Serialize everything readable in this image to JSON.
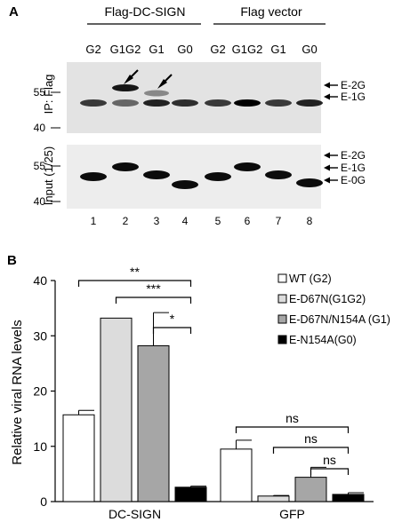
{
  "panel_a": {
    "label": "A",
    "group1_title": "Flag-DC-SIGN",
    "group2_title": "Flag vector",
    "lane_headers": [
      "G2",
      "G1G2",
      "G1",
      "G0",
      "G2",
      "G1G2",
      "G1",
      "G0"
    ],
    "top_blot": {
      "ylabel": "IP: Flag",
      "markers": [
        "55",
        "40"
      ],
      "right_labels": [
        "E-2G",
        "E-1G"
      ]
    },
    "bottom_blot": {
      "ylabel": "Input (1/25)",
      "markers": [
        "55",
        "40"
      ],
      "right_labels": [
        "E-2G",
        "E-1G",
        "E-0G"
      ]
    },
    "lane_numbers": [
      "1",
      "2",
      "3",
      "4",
      "5",
      "6",
      "7",
      "8"
    ]
  },
  "panel_b": {
    "label": "B",
    "significance": [
      "**",
      "***",
      "*",
      "ns",
      "ns",
      "ns"
    ]
  },
  "chart_data": {
    "type": "bar",
    "categories": [
      "DC-SIGN",
      "GFP"
    ],
    "ylabel": "Relative viral RNA levels",
    "ylim": [
      0,
      40
    ],
    "yticks": [
      0,
      10,
      20,
      30,
      40
    ],
    "legend_position": "top-right",
    "series": [
      {
        "name": "WT (G2)",
        "values": [
          15.7,
          9.5
        ],
        "errors": [
          0.8,
          1.6
        ],
        "color": "#ffffff"
      },
      {
        "name": "E-D67N(G1G2)",
        "values": [
          33.2,
          1.0
        ],
        "errors": [
          0,
          0.1
        ],
        "color": "#dcdcdc"
      },
      {
        "name": "E-D67N/N154A (G1)",
        "values": [
          28.2,
          4.4
        ],
        "errors": [
          6.0,
          1.8
        ],
        "color": "#a6a6a6"
      },
      {
        "name": "E-N154A(G0)",
        "values": [
          2.6,
          1.3
        ],
        "errors": [
          0.2,
          0.3
        ],
        "color": "#000000"
      }
    ]
  }
}
